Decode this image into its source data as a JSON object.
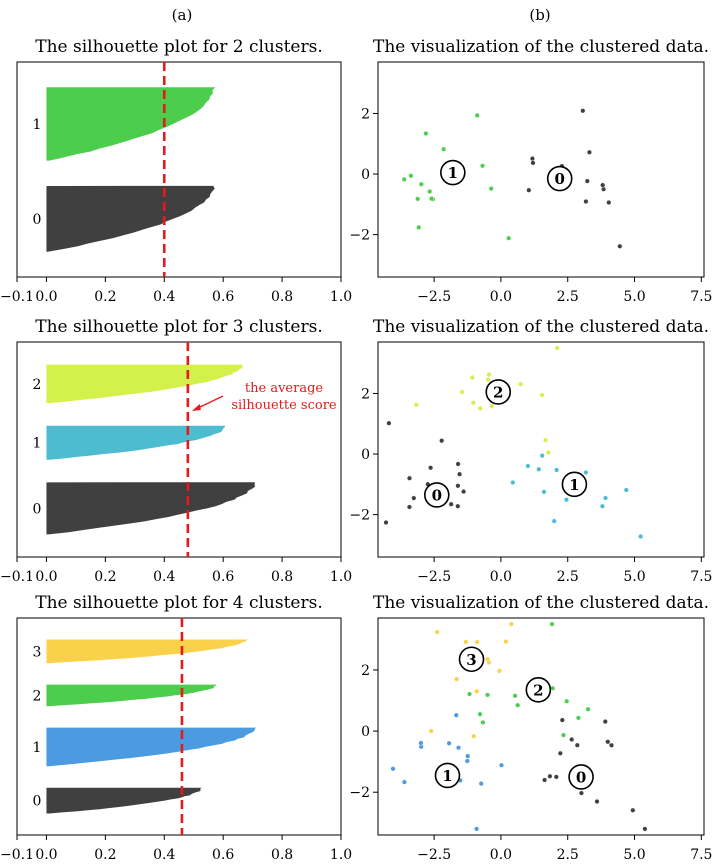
{
  "figure": {
    "column_labels": [
      "(a)",
      "(b)"
    ]
  },
  "chart_data": [
    {
      "type": "silhouette",
      "title": "The silhouette plot for 2 clusters.",
      "xlim": [
        -0.1,
        1.0
      ],
      "xticks": [
        -0.1,
        0.0,
        0.2,
        0.4,
        0.6,
        0.8,
        1.0
      ],
      "xtick_labels": [
        "−0.1",
        "0.0",
        "0.2",
        "0.4",
        "0.6",
        "0.8",
        "1.0"
      ],
      "average_silhouette_score": 0.4,
      "clusters": [
        {
          "label": "0",
          "color": "#404040",
          "max_silhouette": 0.57,
          "min_silhouette": 0.0,
          "size": 26
        },
        {
          "label": "1",
          "color": "#4ccd4c",
          "max_silhouette": 0.57,
          "min_silhouette": 0.0,
          "size": 29
        }
      ],
      "grid": false
    },
    {
      "type": "scatter",
      "title": "The visualization of the clustered data.",
      "xlim": [
        -4.6,
        7.6
      ],
      "ylim": [
        -3.4,
        3.7
      ],
      "xticks": [
        -2.5,
        0.0,
        2.5,
        5.0,
        7.5
      ],
      "xtick_labels": [
        "−2.5",
        "0.0",
        "2.5",
        "5.0",
        "7.5"
      ],
      "yticks": [
        -2,
        0,
        2
      ],
      "ytick_labels": [
        "−2",
        "0",
        "2"
      ],
      "clusters": [
        {
          "label": "0",
          "color": "#404040",
          "center": [
            2.2,
            -0.15
          ]
        },
        {
          "label": "1",
          "color": "#4ccd4c",
          "center": [
            -1.8,
            0.05
          ]
        }
      ],
      "grid": false
    },
    {
      "type": "silhouette",
      "title": "The silhouette plot for 3 clusters.",
      "xlim": [
        -0.1,
        1.0
      ],
      "xticks": [
        -0.1,
        0.0,
        0.2,
        0.4,
        0.6,
        0.8,
        1.0
      ],
      "xtick_labels": [
        "−0.1",
        "0.0",
        "0.2",
        "0.4",
        "0.6",
        "0.8",
        "1.0"
      ],
      "average_silhouette_score": 0.48,
      "annotation": {
        "lines": [
          "the average",
          "silhouette score"
        ]
      },
      "clusters": [
        {
          "label": "0",
          "color": "#404040",
          "max_silhouette": 0.71,
          "min_silhouette": 0.0,
          "size": 23
        },
        {
          "label": "1",
          "color": "#4dbcd0",
          "max_silhouette": 0.61,
          "min_silhouette": -0.02,
          "size": 15
        },
        {
          "label": "2",
          "color": "#d4f04a",
          "max_silhouette": 0.67,
          "min_silhouette": 0.0,
          "size": 17
        }
      ],
      "grid": false
    },
    {
      "type": "scatter",
      "title": "The visualization of the clustered data.",
      "xlim": [
        -4.6,
        7.6
      ],
      "ylim": [
        -3.4,
        3.7
      ],
      "xticks": [
        -2.5,
        0.0,
        2.5,
        5.0,
        7.5
      ],
      "xtick_labels": [
        "−2.5",
        "0.0",
        "2.5",
        "5.0",
        "7.5"
      ],
      "yticks": [
        -2,
        0,
        2
      ],
      "ytick_labels": [
        "−2",
        "0",
        "2"
      ],
      "clusters": [
        {
          "label": "0",
          "color": "#404040",
          "center": [
            -2.4,
            -1.35
          ]
        },
        {
          "label": "1",
          "color": "#4dbcd0",
          "center": [
            2.75,
            -1.0
          ]
        },
        {
          "label": "2",
          "color": "#d4f04a",
          "center": [
            -0.1,
            2.05
          ]
        }
      ],
      "grid": false
    },
    {
      "type": "silhouette",
      "title": "The silhouette plot for 4 clusters.",
      "xlim": [
        -0.1,
        1.0
      ],
      "xticks": [
        -0.1,
        0.0,
        0.2,
        0.4,
        0.6,
        0.8,
        1.0
      ],
      "xtick_labels": [
        "−0.1",
        "0.0",
        "0.2",
        "0.4",
        "0.6",
        "0.8",
        "1.0"
      ],
      "average_silhouette_score": 0.46,
      "clusters": [
        {
          "label": "0",
          "color": "#404040",
          "max_silhouette": 0.53,
          "min_silhouette": 0.0,
          "size": 12
        },
        {
          "label": "1",
          "color": "#4a9be0",
          "max_silhouette": 0.71,
          "min_silhouette": 0.0,
          "size": 18
        },
        {
          "label": "2",
          "color": "#4ccd4c",
          "max_silhouette": 0.58,
          "min_silhouette": -0.1,
          "size": 10
        },
        {
          "label": "3",
          "color": "#fad14a",
          "max_silhouette": 0.68,
          "min_silhouette": 0.0,
          "size": 11
        }
      ],
      "grid": false
    },
    {
      "type": "scatter",
      "title": "The visualization of the clustered data.",
      "xlim": [
        -4.6,
        7.6
      ],
      "ylim": [
        -3.4,
        3.7
      ],
      "xticks": [
        -2.5,
        0.0,
        2.5,
        5.0,
        7.5
      ],
      "xtick_labels": [
        "−2.5",
        "0.0",
        "2.5",
        "5.0",
        "7.5"
      ],
      "yticks": [
        -2,
        0,
        2
      ],
      "ytick_labels": [
        "−2",
        "0",
        "2"
      ],
      "clusters": [
        {
          "label": "0",
          "color": "#404040",
          "center": [
            3.0,
            -1.5
          ]
        },
        {
          "label": "1",
          "color": "#4a9be0",
          "center": [
            -2.0,
            -1.45
          ]
        },
        {
          "label": "2",
          "color": "#4ccd4c",
          "center": [
            1.4,
            1.35
          ]
        },
        {
          "label": "3",
          "color": "#fad14a",
          "center": [
            -1.1,
            2.35
          ]
        }
      ],
      "grid": false
    }
  ]
}
